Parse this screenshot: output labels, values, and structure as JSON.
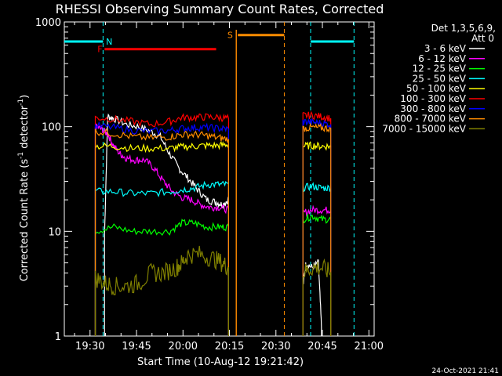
{
  "chart_data": {
    "type": "line",
    "title": "RHESSI Observing Summary Count Rates, Corrected",
    "xlabel": "Start Time (10-Aug-12 19:21:42)",
    "ylabel": "Corrected Count Rate (s^-1 detector^-1)",
    "ylabel_main": "Corrected Count Rate (s",
    "ylabel_exp1": "-1",
    "ylabel_mid": " detector",
    "ylabel_exp2": "-1",
    "ylabel_end": ")",
    "yscale": "log",
    "ylim": [
      1,
      1000
    ],
    "xlim_minutes": [
      0,
      100
    ],
    "x_start_offset_sec": 0,
    "x_ticks": [
      {
        "label": "19:30",
        "min": 8.3
      },
      {
        "label": "19:45",
        "min": 23.3
      },
      {
        "label": "20:00",
        "min": 38.3
      },
      {
        "label": "20:15",
        "min": 53.3
      },
      {
        "label": "20:30",
        "min": 68.3
      },
      {
        "label": "20:45",
        "min": 83.3
      },
      {
        "label": "21:00",
        "min": 98.3
      }
    ],
    "y_ticks": [
      {
        "label": "1",
        "value": 1
      },
      {
        "label": "10",
        "value": 10
      },
      {
        "label": "100",
        "value": 100
      },
      {
        "label": "1000",
        "value": 1000
      }
    ],
    "legend_header": [
      "Det 1,3,5,6,9,",
      "Att 0"
    ],
    "legend_position": "top-right",
    "series": [
      {
        "name": "3 - 6 keV",
        "color": "#ffffff",
        "segments": [
          [
            [
              13,
              9.5
            ],
            [
              14,
              125
            ],
            [
              16,
              120
            ],
            [
              20,
              105
            ],
            [
              24,
              100
            ],
            [
              28,
              90
            ],
            [
              31,
              80
            ],
            [
              34,
              55
            ],
            [
              37,
              40
            ],
            [
              40,
              32
            ],
            [
              43,
              25
            ],
            [
              46,
              20
            ],
            [
              49,
              19
            ],
            [
              51,
              18
            ],
            [
              53,
              20
            ]
          ],
          [
            [
              77,
              3
            ],
            [
              78,
              5
            ],
            [
              80,
              4.5
            ],
            [
              82,
              5
            ],
            [
              83,
              1.2
            ]
          ]
        ]
      },
      {
        "name": "6 - 12 keV",
        "color": "#ff00ff",
        "segments": [
          [
            [
              10,
              100
            ],
            [
              12,
              95
            ],
            [
              14,
              85
            ],
            [
              16,
              65
            ],
            [
              18,
              55
            ],
            [
              20,
              50
            ],
            [
              23,
              48
            ],
            [
              26,
              48
            ],
            [
              29,
              40
            ],
            [
              32,
              30
            ],
            [
              35,
              24
            ],
            [
              38,
              21
            ],
            [
              41,
              20
            ],
            [
              44,
              18
            ],
            [
              47,
              17
            ],
            [
              50,
              17
            ],
            [
              53,
              16
            ]
          ],
          [
            [
              77,
              15
            ],
            [
              80,
              16
            ],
            [
              83,
              16
            ],
            [
              86,
              16
            ]
          ]
        ]
      },
      {
        "name": "12 - 25 keV",
        "color": "#00ff00",
        "segments": [
          [
            [
              10,
              10
            ],
            [
              16,
              11
            ],
            [
              22,
              10
            ],
            [
              28,
              10
            ],
            [
              34,
              10
            ],
            [
              38,
              12
            ],
            [
              42,
              12
            ],
            [
              46,
              11
            ],
            [
              50,
              11
            ],
            [
              53,
              11
            ]
          ],
          [
            [
              77,
              13
            ],
            [
              80,
              14
            ],
            [
              83,
              13
            ],
            [
              86,
              13
            ]
          ]
        ]
      },
      {
        "name": "25 - 50 keV",
        "color": "#00ffff",
        "segments": [
          [
            [
              10,
              24
            ],
            [
              16,
              24
            ],
            [
              22,
              23
            ],
            [
              28,
              23
            ],
            [
              34,
              24
            ],
            [
              38,
              25
            ],
            [
              42,
              26
            ],
            [
              46,
              28
            ],
            [
              50,
              28
            ],
            [
              53,
              28
            ]
          ],
          [
            [
              77,
              26
            ],
            [
              80,
              27
            ],
            [
              83,
              26
            ],
            [
              86,
              26
            ]
          ]
        ]
      },
      {
        "name": "50 - 100 keV",
        "color": "#ffff00",
        "segments": [
          [
            [
              10,
              65
            ],
            [
              16,
              65
            ],
            [
              22,
              62
            ],
            [
              28,
              62
            ],
            [
              34,
              62
            ],
            [
              38,
              64
            ],
            [
              42,
              65
            ],
            [
              46,
              66
            ],
            [
              50,
              66
            ],
            [
              53,
              68
            ]
          ],
          [
            [
              77,
              65
            ],
            [
              80,
              66
            ],
            [
              83,
              65
            ],
            [
              86,
              65
            ]
          ]
        ]
      },
      {
        "name": "100 - 300 keV",
        "color": "#ff0000",
        "segments": [
          [
            [
              10,
              122
            ],
            [
              16,
              118
            ],
            [
              22,
              112
            ],
            [
              28,
              105
            ],
            [
              34,
              112
            ],
            [
              38,
              122
            ],
            [
              42,
              122
            ],
            [
              46,
              124
            ],
            [
              50,
              122
            ],
            [
              53,
              120
            ]
          ],
          [
            [
              77,
              128
            ],
            [
              80,
              128
            ],
            [
              83,
              125
            ],
            [
              86,
              120
            ]
          ]
        ]
      },
      {
        "name": "300 - 800 keV",
        "color": "#0000ff",
        "segments": [
          [
            [
              10,
              102
            ],
            [
              16,
              98
            ],
            [
              22,
              92
            ],
            [
              28,
              90
            ],
            [
              34,
              92
            ],
            [
              38,
              96
            ],
            [
              42,
              98
            ],
            [
              46,
              98
            ],
            [
              50,
              96
            ],
            [
              53,
              95
            ]
          ],
          [
            [
              77,
              112
            ],
            [
              80,
              110
            ],
            [
              83,
              108
            ],
            [
              86,
              105
            ]
          ]
        ]
      },
      {
        "name": "800 - 7000 keV",
        "color": "#ff8c00",
        "segments": [
          [
            [
              10,
              90
            ],
            [
              16,
              86
            ],
            [
              22,
              80
            ],
            [
              28,
              78
            ],
            [
              34,
              80
            ],
            [
              38,
              84
            ],
            [
              42,
              84
            ],
            [
              46,
              82
            ],
            [
              50,
              78
            ],
            [
              53,
              76
            ]
          ],
          [
            [
              77,
              96
            ],
            [
              80,
              98
            ],
            [
              83,
              97
            ],
            [
              86,
              96
            ]
          ]
        ]
      },
      {
        "name": "7000 - 15000 keV",
        "color": "#808000",
        "segments": [
          [
            [
              10,
              3.6
            ],
            [
              13,
              3.2
            ],
            [
              16,
              3
            ],
            [
              20,
              3
            ],
            [
              24,
              3.2
            ],
            [
              28,
              4
            ],
            [
              32,
              4
            ],
            [
              36,
              4.5
            ],
            [
              38,
              5
            ],
            [
              40,
              6
            ],
            [
              44,
              6
            ],
            [
              48,
              5.5
            ],
            [
              51,
              5
            ],
            [
              53,
              4.5
            ]
          ],
          [
            [
              77,
              4
            ],
            [
              80,
              4.5
            ],
            [
              83,
              4.5
            ],
            [
              86,
              4
            ]
          ]
        ]
      }
    ],
    "flags": [
      {
        "letter": "N",
        "color": "#00ffff",
        "level": 650,
        "label_min": 14.5,
        "bars": [
          [
            0,
            12.5
          ],
          [
            79.5,
            93.5
          ]
        ],
        "dashed_x": [
          12.5,
          79.5,
          93.5
        ]
      },
      {
        "letter": "F",
        "color": "#ff0000",
        "level": 550,
        "label_min": 11.5,
        "bars": [
          [
            13,
            49
          ]
        ],
        "dashed_x": []
      },
      {
        "letter": "S",
        "color": "#ff8c00",
        "level": 750,
        "label_min": 53.5,
        "bars": [
          [
            56,
            71
          ]
        ],
        "dashed_x": [
          71
        ],
        "solid_x": [
          55.5
        ]
      }
    ]
  },
  "footer_date": "24-Oct-2021 21:41"
}
